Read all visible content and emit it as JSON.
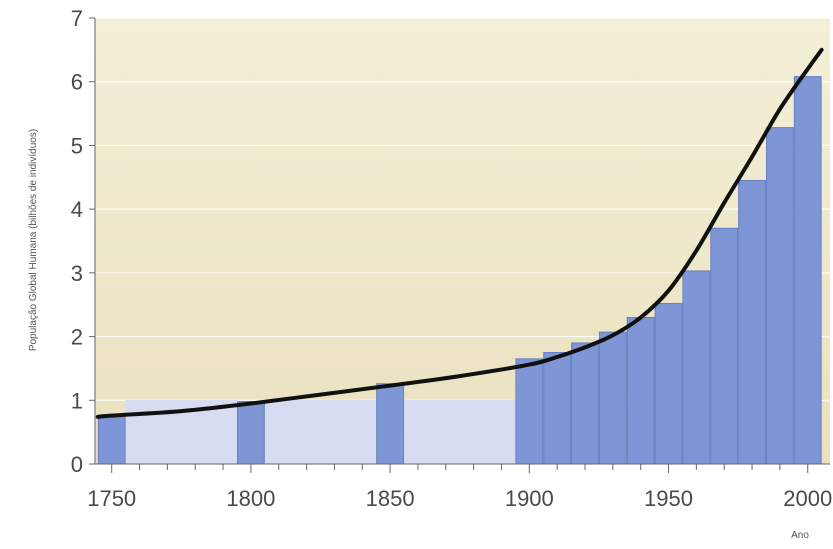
{
  "chart_data": {
    "type": "bar",
    "title": "",
    "xlabel": "Ano",
    "ylabel": "População Global Humana (bilhões de indivíduos)",
    "xlim": [
      1744,
      2008
    ],
    "ylim": [
      0,
      7
    ],
    "x_ticks": [
      1750,
      1800,
      1850,
      1900,
      1950,
      2000
    ],
    "y_ticks": [
      0,
      1,
      2,
      3,
      4,
      5,
      6,
      7
    ],
    "grid": true,
    "legend": "none",
    "bar_width_years": 10,
    "bars": [
      {
        "x": 1750,
        "value": 0.76
      },
      {
        "x": 1800,
        "value": 0.98
      },
      {
        "x": 1850,
        "value": 1.26
      },
      {
        "x": 1900,
        "value": 1.65
      },
      {
        "x": 1910,
        "value": 1.75
      },
      {
        "x": 1920,
        "value": 1.9
      },
      {
        "x": 1930,
        "value": 2.07
      },
      {
        "x": 1940,
        "value": 2.3
      },
      {
        "x": 1950,
        "value": 2.52
      },
      {
        "x": 1960,
        "value": 3.03
      },
      {
        "x": 1970,
        "value": 3.7
      },
      {
        "x": 1980,
        "value": 4.45
      },
      {
        "x": 1990,
        "value": 5.28
      },
      {
        "x": 2000,
        "value": 6.08
      }
    ],
    "interval_bands": [
      {
        "from": 1755,
        "to": 1795
      },
      {
        "from": 1805,
        "to": 1845
      },
      {
        "from": 1855,
        "to": 1895
      }
    ],
    "curve": {
      "x": [
        1745,
        1750,
        1775,
        1800,
        1825,
        1850,
        1875,
        1900,
        1910,
        1920,
        1930,
        1940,
        1950,
        1960,
        1970,
        1980,
        1990,
        2000,
        2005
      ],
      "y": [
        0.74,
        0.76,
        0.83,
        0.95,
        1.09,
        1.23,
        1.38,
        1.56,
        1.68,
        1.83,
        2.02,
        2.3,
        2.72,
        3.35,
        4.1,
        4.82,
        5.57,
        6.2,
        6.5
      ]
    },
    "colors": {
      "bar": "#7e95d6",
      "bar_edge": "#6880c4",
      "band": "#d7dcf3",
      "curve": "#111111",
      "background_top": "#f4efd8",
      "background_bottom": "#e9e1bf",
      "grid": "#ffffff"
    }
  }
}
